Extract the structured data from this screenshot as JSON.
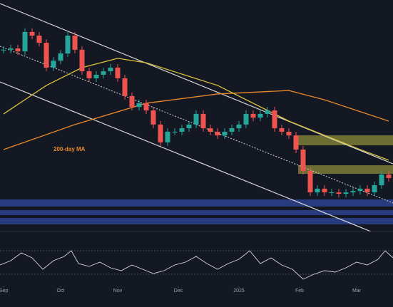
{
  "chart_data": {
    "type": "candlestick",
    "ylim": [
      0,
      100
    ],
    "xlim": [
      -0.5,
      54.6
    ],
    "xticks": [
      {
        "value": 0,
        "label": "Sep"
      },
      {
        "value": 8,
        "label": "Oct"
      },
      {
        "value": 16,
        "label": "Nov"
      },
      {
        "value": 24.5,
        "label": "Dec"
      },
      {
        "value": 33,
        "label": "2025"
      },
      {
        "value": 41.5,
        "label": "Feb"
      },
      {
        "value": 49.5,
        "label": "Mar"
      }
    ],
    "up_color": "#26a69a",
    "down_color": "#ef5350",
    "closes": [
      78.5,
      79.1,
      77.8,
      86.2,
      84.6,
      81.5,
      70.8,
      73.8,
      76.9,
      84.6,
      78.5,
      69.2,
      66.2,
      67.7,
      69.2,
      70.8,
      66.2,
      58.5,
      53.8,
      55.4,
      52.3,
      46.2,
      38.5,
      43.1,
      43.1,
      44.6,
      46.2,
      50.8,
      44.6,
      43.1,
      41.5,
      43.1,
      44.6,
      46.2,
      50.8,
      49.2,
      50.8,
      52.3,
      44.6,
      43.1,
      41.5,
      35.4,
      26.2,
      16.9,
      18.5,
      16.9,
      16.9,
      16.3,
      16.9,
      17.5,
      18.5,
      16.9,
      20,
      24.6,
      23.1
    ],
    "series": [
      {
        "name": "200-day MA",
        "color": "#e8892a",
        "x": [
          0,
          10,
          20,
          30,
          40,
          45,
          54
        ],
        "values": [
          35.4,
          46.2,
          55.4,
          59.4,
          60.9,
          56.9,
          47.7
        ]
      },
      {
        "color": "#d9c23a",
        "x": [
          0,
          6,
          11,
          16,
          20,
          30,
          40,
          50,
          54
        ],
        "values": [
          50.8,
          63.1,
          70.8,
          74.8,
          72.9,
          63.1,
          47.7,
          35.4,
          30.8
        ]
      }
    ]
  }
}
